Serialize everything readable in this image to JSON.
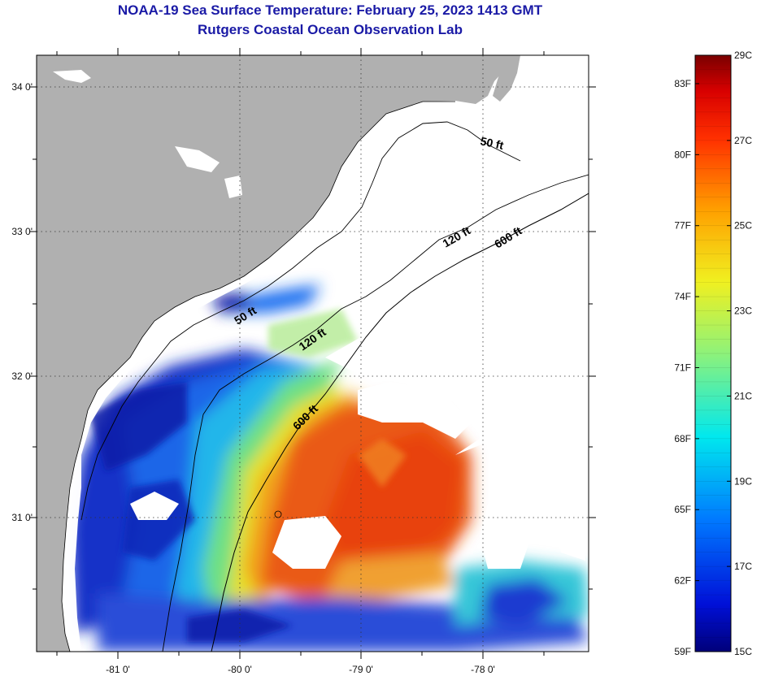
{
  "header": {
    "title": "NOAA-19 Sea Surface Temperature:  February 25, 2023 1413 GMT",
    "subtitle": "Rutgers Coastal Ocean Observation Lab"
  },
  "map": {
    "lon_ticks": [
      "-81 0'",
      "-80 0'",
      "-79 0'",
      "-78 0'"
    ],
    "lat_ticks": [
      "34 0'",
      "33 0'",
      "32 0'",
      "31 0'"
    ],
    "contours": {
      "c50a": "50 ft",
      "c50b": "50 ft",
      "c120a": "120 ft",
      "c120b": "120 ft",
      "c600a": "600 ft",
      "c600b": "600 ft"
    },
    "colors": {
      "land": "#b0b0b0",
      "no_data": "#ffffff",
      "cold": "#0a1ea8",
      "warm": "#e8420e"
    }
  },
  "colorbar": {
    "fahrenheit": [
      "83F",
      "80F",
      "77F",
      "74F",
      "71F",
      "68F",
      "65F",
      "62F",
      "59F"
    ],
    "celsius": [
      "29C",
      "27C",
      "25C",
      "23C",
      "21C",
      "19C",
      "17C",
      "15C"
    ]
  }
}
